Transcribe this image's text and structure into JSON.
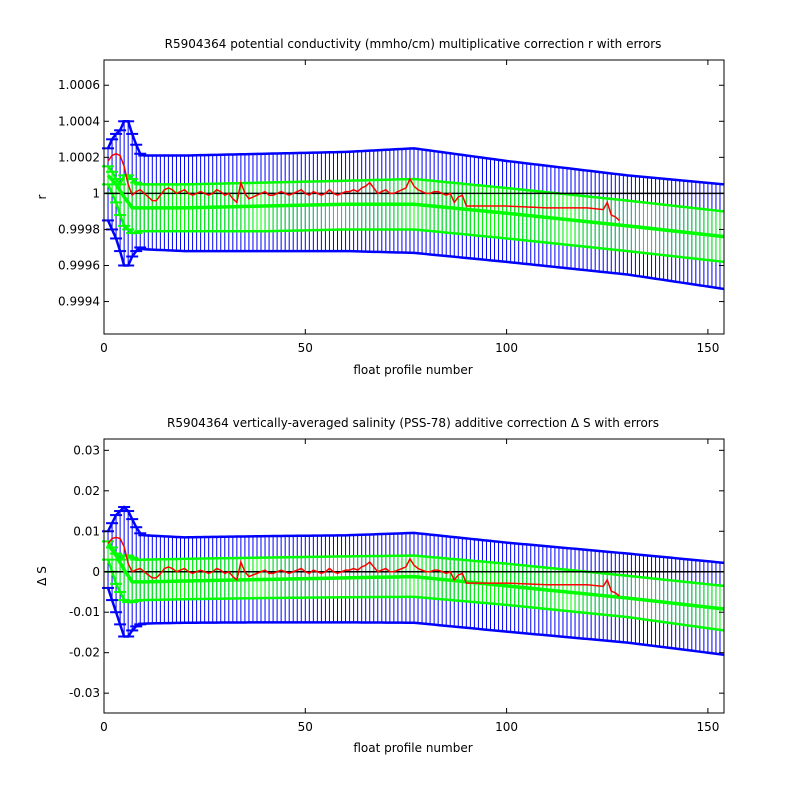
{
  "chart_data": [
    {
      "type": "line",
      "title": "R5904364 potential conductivity (mmho/cm) multiplicative correction r with errors",
      "xlabel": "float profile number",
      "ylabel": "r",
      "xlim": [
        0,
        154
      ],
      "ylim": [
        0.99922,
        1.00074
      ],
      "xticks": [
        "0",
        "50",
        "100",
        "150"
      ],
      "xtick_values": [
        0,
        50,
        100,
        150
      ],
      "yticks": [
        "0.9994",
        "0.9996",
        "0.9998",
        "1",
        "1.0002",
        "1.0004",
        "1.0006"
      ],
      "ytick_values": [
        0.9994,
        0.9996,
        0.9998,
        1.0,
        1.0002,
        1.0004,
        1.0006
      ],
      "grid": false,
      "reference_line": 1.0,
      "series": [
        {
          "role": "blue-error-band",
          "color": "#0000ff",
          "style": "errorbar",
          "x": [
            1,
            2,
            3,
            4,
            5,
            6,
            7,
            8,
            9,
            10,
            20,
            40,
            60,
            77,
            100,
            130,
            154
          ],
          "upper": [
            1.00025,
            1.0003,
            1.00033,
            1.00035,
            1.0004,
            1.0004,
            1.00033,
            1.00027,
            1.00022,
            1.00021,
            1.00021,
            1.00022,
            1.00023,
            1.00025,
            1.00018,
            1.0001,
            1.00005
          ],
          "lower": [
            0.99985,
            0.9998,
            0.99975,
            0.99968,
            0.9996,
            0.9996,
            0.99965,
            0.99968,
            0.9997,
            0.99969,
            0.99968,
            0.99968,
            0.99968,
            0.99967,
            0.99962,
            0.99955,
            0.99947
          ]
        },
        {
          "role": "green-error-band",
          "color": "#00ff00",
          "style": "errorbar",
          "x": [
            1,
            2,
            3,
            4,
            5,
            6,
            7,
            8,
            9,
            10,
            20,
            40,
            60,
            77,
            100,
            130,
            154
          ],
          "upper": [
            1.00015,
            1.00012,
            1.00008,
            1.00005,
            1.0001,
            1.0001,
            1.00008,
            1.00006,
            1.00005,
            1.00005,
            1.00005,
            1.00006,
            1.00007,
            1.00008,
            1.00003,
            0.99996,
            0.9999
          ],
          "lower": [
            1.00005,
            1.0,
            0.99995,
            0.99988,
            0.99982,
            0.9998,
            0.99978,
            0.99978,
            0.99979,
            0.99979,
            0.99979,
            0.99979,
            0.9998,
            0.9998,
            0.99975,
            0.99968,
            0.99962
          ]
        },
        {
          "role": "green-fit-line",
          "color": "#00ff00",
          "style": "line",
          "x": [
            1,
            3,
            5,
            7,
            10,
            20,
            40,
            60,
            77,
            100,
            130,
            154
          ],
          "y": [
            1.0001,
            1.00005,
            0.99998,
            0.99992,
            0.99992,
            0.99992,
            0.99993,
            0.99994,
            0.99994,
            0.99989,
            0.99982,
            0.99976
          ]
        },
        {
          "role": "red-measured",
          "color": "#ff0000",
          "style": "line",
          "x": [
            1,
            2,
            3,
            4,
            5,
            6,
            7,
            8,
            9,
            10,
            11,
            12,
            13,
            14,
            15,
            16,
            17,
            18,
            19,
            20,
            21,
            22,
            23,
            24,
            25,
            26,
            27,
            28,
            29,
            30,
            31,
            32,
            33,
            34,
            35,
            36,
            37,
            38,
            39,
            40,
            41,
            42,
            43,
            44,
            45,
            46,
            47,
            48,
            49,
            50,
            51,
            52,
            53,
            54,
            55,
            56,
            57,
            58,
            59,
            60,
            61,
            62,
            63,
            64,
            65,
            66,
            67,
            68,
            69,
            70,
            71,
            72,
            73,
            74,
            75,
            76,
            77,
            78,
            79,
            80,
            81,
            82,
            83,
            84,
            85,
            86,
            87,
            88,
            89,
            90,
            100,
            110,
            120,
            124,
            125,
            126,
            127,
            128
          ],
          "y": [
            1.00018,
            1.00021,
            1.00022,
            1.00021,
            1.00015,
            1.00005,
            0.99999,
            1.00001,
            1.00002,
            1.0,
            0.99998,
            0.99996,
            0.99996,
            0.99999,
            1.00002,
            1.00003,
            1.00002,
            1.0,
            1.00001,
            1.00002,
            1.0,
            0.99999,
            1.0,
            1.00001,
            1.0,
            0.99999,
            1.0,
            1.00002,
            1.00001,
            0.99999,
            1.0,
            0.99997,
            0.99995,
            1.00006,
            1.0,
            0.99997,
            0.99998,
            0.99999,
            1.0,
            1.00001,
            0.99999,
            0.99999,
            1.0,
            1.00001,
            1.0,
            0.99999,
            1.0,
            1.00001,
            1.00002,
            1.0,
            0.99999,
            1.00001,
            1.0,
            0.99999,
            1.0,
            1.00002,
            1.0,
            0.99999,
            1.0,
            1.00001,
            1.00001,
            1.00002,
            1.00001,
            1.00003,
            1.00004,
            1.00006,
            1.00003,
            1.0,
            1.00001,
            1.00002,
            1.0,
            1.0,
            1.00001,
            1.00002,
            1.00003,
            1.00008,
            1.00004,
            1.00002,
            1.00001,
            1.0,
            1.0,
            1.00001,
            1.00001,
            1.0,
            0.99999,
            1.0,
            0.99995,
            0.99998,
            0.99999,
            0.99993,
            0.99993,
            0.99992,
            0.99992,
            0.99991,
            0.99995,
            0.99988,
            0.99987,
            0.99985
          ]
        }
      ]
    },
    {
      "type": "line",
      "title": "R5904364 vertically-averaged salinity (PSS-78) additive correction Δ S with errors",
      "xlabel": "float profile number",
      "ylabel": "Δ S",
      "xlim": [
        0,
        154
      ],
      "ylim": [
        -0.0349,
        0.0328
      ],
      "xticks": [
        "0",
        "50",
        "100",
        "150"
      ],
      "xtick_values": [
        0,
        50,
        100,
        150
      ],
      "yticks": [
        "-0.03",
        "-0.02",
        "-0.01",
        "0",
        "0.01",
        "0.02",
        "0.03"
      ],
      "ytick_values": [
        -0.03,
        -0.02,
        -0.01,
        0,
        0.01,
        0.02,
        0.03
      ],
      "grid": false,
      "reference_line": 0,
      "series": [
        {
          "role": "blue-error-band",
          "color": "#0000ff",
          "style": "errorbar",
          "x": [
            1,
            2,
            3,
            4,
            5,
            6,
            7,
            8,
            9,
            10,
            20,
            40,
            60,
            77,
            100,
            130,
            154
          ],
          "upper": [
            0.01,
            0.012,
            0.014,
            0.015,
            0.016,
            0.015,
            0.013,
            0.011,
            0.0095,
            0.009,
            0.0085,
            0.0088,
            0.009,
            0.0096,
            0.0072,
            0.0045,
            0.0022
          ],
          "lower": [
            -0.004,
            -0.007,
            -0.01,
            -0.013,
            -0.016,
            -0.016,
            -0.0145,
            -0.0135,
            -0.013,
            -0.0128,
            -0.0126,
            -0.0125,
            -0.0125,
            -0.0126,
            -0.0148,
            -0.0175,
            -0.0205
          ]
        },
        {
          "role": "green-error-band",
          "color": "#00ff00",
          "style": "errorbar",
          "x": [
            1,
            2,
            3,
            4,
            5,
            6,
            7,
            8,
            9,
            10,
            20,
            40,
            60,
            77,
            100,
            130,
            154
          ],
          "upper": [
            0.0075,
            0.006,
            0.0045,
            0.003,
            0.004,
            0.004,
            0.0035,
            0.003,
            0.003,
            0.003,
            0.0032,
            0.0035,
            0.0038,
            0.004,
            0.002,
            -0.001,
            -0.0035
          ],
          "lower": [
            0.003,
            0.0,
            -0.003,
            -0.005,
            -0.007,
            -0.0075,
            -0.0075,
            -0.0072,
            -0.007,
            -0.007,
            -0.0068,
            -0.0065,
            -0.0063,
            -0.0062,
            -0.0082,
            -0.0112,
            -0.0145
          ]
        },
        {
          "role": "green-fit-line",
          "color": "#00ff00",
          "style": "line",
          "x": [
            1,
            3,
            5,
            7,
            10,
            20,
            40,
            60,
            77,
            100,
            130,
            154
          ],
          "y": [
            0.0068,
            0.004,
            0.0005,
            -0.0025,
            -0.0025,
            -0.0023,
            -0.0019,
            -0.0015,
            -0.0012,
            -0.0035,
            -0.0065,
            -0.0092
          ]
        },
        {
          "role": "red-measured",
          "color": "#ff0000",
          "style": "line",
          "x": [
            1,
            2,
            3,
            4,
            5,
            6,
            7,
            8,
            9,
            10,
            11,
            12,
            13,
            14,
            15,
            16,
            17,
            18,
            19,
            20,
            21,
            22,
            23,
            24,
            25,
            26,
            27,
            28,
            29,
            30,
            31,
            32,
            33,
            34,
            35,
            36,
            37,
            38,
            39,
            40,
            41,
            42,
            43,
            44,
            45,
            46,
            47,
            48,
            49,
            50,
            51,
            52,
            53,
            54,
            55,
            56,
            57,
            58,
            59,
            60,
            61,
            62,
            63,
            64,
            65,
            66,
            67,
            68,
            69,
            70,
            71,
            72,
            73,
            74,
            75,
            76,
            77,
            78,
            79,
            80,
            81,
            82,
            83,
            84,
            85,
            86,
            87,
            88,
            89,
            90,
            100,
            110,
            120,
            124,
            125,
            126,
            127,
            128
          ],
          "y": [
            0.007,
            0.0082,
            0.0085,
            0.0082,
            0.0062,
            0.002,
            0.0,
            0.0005,
            0.0008,
            0.0,
            -0.0008,
            -0.0015,
            -0.0015,
            -0.0005,
            0.0008,
            0.0012,
            0.0008,
            0.0,
            0.0004,
            0.0008,
            0.0,
            -0.0004,
            0.0,
            0.0004,
            0.0,
            -0.0004,
            0.0,
            0.0008,
            0.0004,
            -0.0004,
            0.0,
            -0.0012,
            -0.002,
            0.0024,
            0.0,
            -0.0012,
            -0.0008,
            -0.0004,
            0.0,
            0.0004,
            -0.0004,
            -0.0004,
            0.0,
            0.0004,
            0.0,
            -0.0004,
            0.0,
            0.0004,
            0.0008,
            0.0,
            -0.0004,
            0.0004,
            0.0,
            -0.0004,
            0.0,
            0.0008,
            0.0,
            -0.0004,
            0.0,
            0.0004,
            0.0004,
            0.0008,
            0.0004,
            0.0012,
            0.0016,
            0.0024,
            0.0012,
            0.0,
            0.0004,
            0.0008,
            0.0,
            0.0,
            0.0004,
            0.0008,
            0.0012,
            0.0032,
            0.0016,
            0.0008,
            0.0004,
            0.0,
            0.0,
            0.0004,
            0.0004,
            0.0,
            -0.0004,
            0.0,
            -0.002,
            -0.0008,
            -0.0004,
            -0.0028,
            -0.0028,
            -0.0032,
            -0.0032,
            -0.0036,
            -0.002,
            -0.0048,
            -0.0052,
            -0.006
          ]
        }
      ]
    }
  ]
}
